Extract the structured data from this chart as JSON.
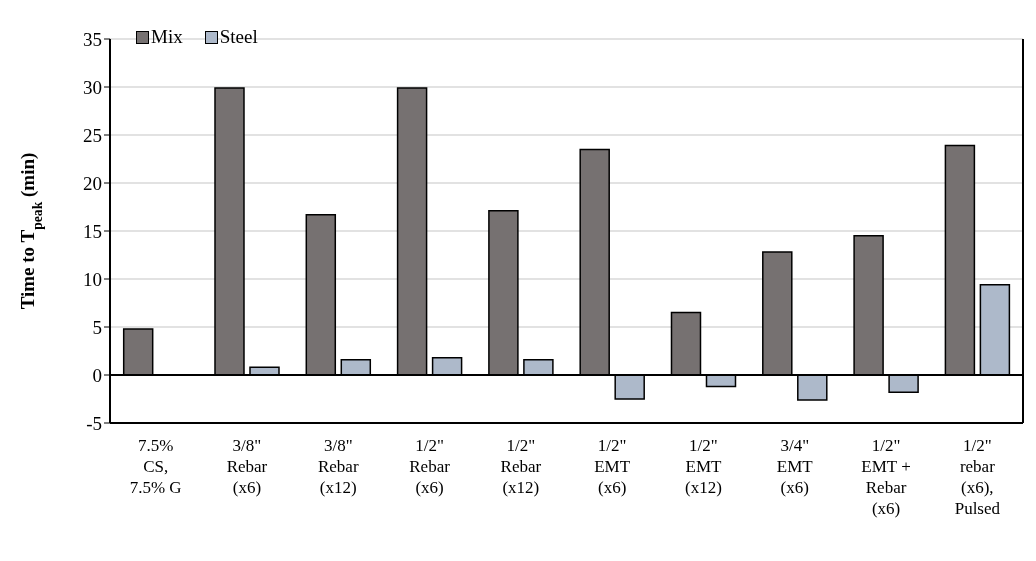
{
  "chart_data": {
    "type": "bar",
    "ylabel": "Time to T$_{peak}$ (min)",
    "categories": [
      "7.5%\nCS,\n7.5% G",
      "3/8\"\nRebar\n(x6)",
      "3/8\"\nRebar\n(x12)",
      "1/2\"\nRebar\n(x6)",
      "1/2\"\nRebar\n(x12)",
      "1/2\"\nEMT\n(x6)",
      "1/2\"\nEMT\n(x12)",
      "3/4\"\nEMT\n(x6)",
      "1/2\"\nEMT +\nRebar\n(x6)",
      "1/2\"\nrebar\n(x6),\nPulsed"
    ],
    "series": [
      {
        "name": "Mix",
        "color": "#767171",
        "values": [
          4.8,
          29.9,
          16.7,
          29.9,
          17.1,
          23.5,
          6.5,
          12.8,
          14.5,
          23.9
        ]
      },
      {
        "name": "Steel",
        "color": "#adb9ca",
        "values": [
          null,
          0.8,
          1.6,
          1.8,
          1.6,
          -2.5,
          -1.2,
          -2.6,
          -1.8,
          9.4
        ]
      }
    ],
    "ylim": [
      -5,
      35
    ],
    "yticks": [
      -5,
      0,
      5,
      10,
      15,
      20,
      25,
      30,
      35
    ],
    "grid": "y",
    "legend": "top left"
  }
}
